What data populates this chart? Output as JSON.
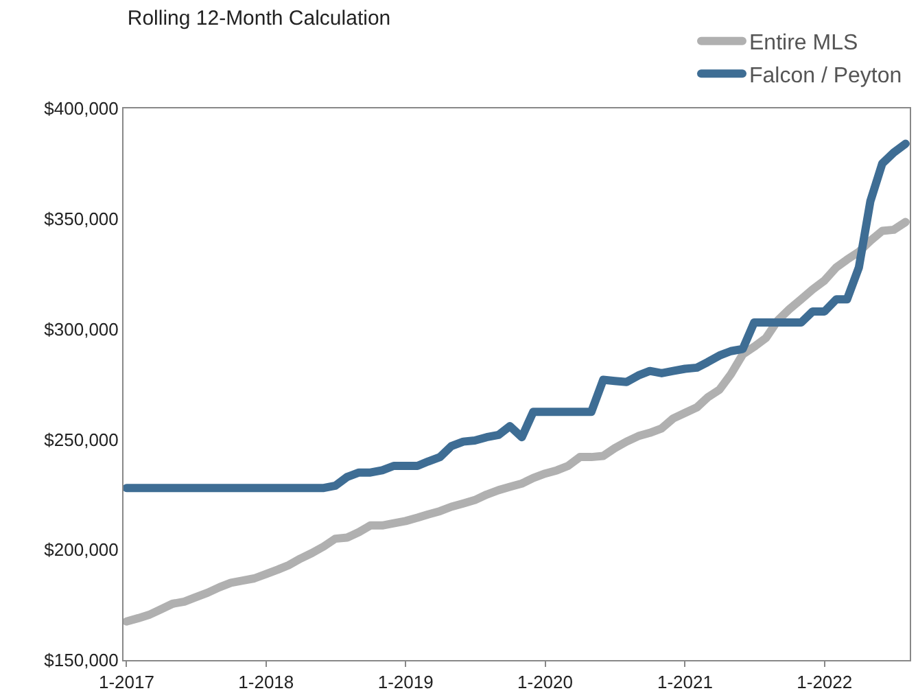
{
  "chart_data": {
    "type": "line",
    "title": "Rolling 12-Month Calculation",
    "x": [
      "2017-01",
      "2017-02",
      "2017-03",
      "2017-04",
      "2017-05",
      "2017-06",
      "2017-07",
      "2017-08",
      "2017-09",
      "2017-10",
      "2017-11",
      "2017-12",
      "2018-01",
      "2018-02",
      "2018-03",
      "2018-04",
      "2018-05",
      "2018-06",
      "2018-07",
      "2018-08",
      "2018-09",
      "2018-10",
      "2018-11",
      "2018-12",
      "2019-01",
      "2019-02",
      "2019-03",
      "2019-04",
      "2019-05",
      "2019-06",
      "2019-07",
      "2019-08",
      "2019-09",
      "2019-10",
      "2019-11",
      "2019-12",
      "2020-01",
      "2020-02",
      "2020-03",
      "2020-04",
      "2020-05",
      "2020-06",
      "2020-07",
      "2020-08",
      "2020-09",
      "2020-10",
      "2020-11",
      "2020-12",
      "2021-01",
      "2021-02",
      "2021-03",
      "2021-04",
      "2021-05",
      "2021-06",
      "2021-07",
      "2021-08",
      "2021-09",
      "2021-10",
      "2021-11",
      "2021-12",
      "2022-01",
      "2022-02",
      "2022-03",
      "2022-04",
      "2022-05",
      "2022-06",
      "2022-07",
      "2022-08"
    ],
    "series": [
      {
        "name": "Entire MLS",
        "color": "#b0b0b0",
        "values": [
          167500,
          169000,
          170500,
          173000,
          175500,
          176500,
          178500,
          180500,
          183000,
          185000,
          186000,
          187000,
          189000,
          191000,
          193000,
          196000,
          198500,
          201500,
          205000,
          205500,
          208000,
          211000,
          211000,
          212000,
          213000,
          214500,
          216000,
          217500,
          219500,
          221000,
          222500,
          225000,
          227000,
          228500,
          230000,
          232500,
          234500,
          236000,
          238000,
          242000,
          242000,
          242500,
          246000,
          249000,
          251500,
          253000,
          255000,
          259500,
          262000,
          264500,
          269000,
          272500,
          279500,
          288500,
          292000,
          296000,
          304000,
          309000,
          313500,
          318000,
          322000,
          328000,
          331500,
          335000,
          340000,
          344500,
          345000,
          348500
        ]
      },
      {
        "name": "Falcon / Peyton",
        "color": "#3e6d94",
        "values": [
          228000,
          228000,
          228000,
          228000,
          228000,
          228000,
          228000,
          228000,
          228000,
          228000,
          228000,
          228000,
          228000,
          228000,
          228000,
          228000,
          228000,
          228000,
          229000,
          233000,
          235000,
          235000,
          236000,
          238000,
          238000,
          238000,
          240000,
          242000,
          247000,
          249000,
          249500,
          251000,
          252000,
          256000,
          251000,
          262500,
          262500,
          262500,
          262500,
          262500,
          262500,
          277000,
          276500,
          276000,
          279000,
          281000,
          280000,
          281000,
          282000,
          282500,
          285000,
          288000,
          290000,
          291000,
          303000,
          303000,
          303000,
          303000,
          303000,
          308000,
          308000,
          313500,
          313500,
          328000,
          358000,
          375000,
          380000,
          384000
        ]
      }
    ],
    "xlim": [
      "2016-12-24",
      "2022-08-12"
    ],
    "xticks": [
      {
        "value": "2017-01",
        "label": "1-2017"
      },
      {
        "value": "2018-01",
        "label": "1-2018"
      },
      {
        "value": "2019-01",
        "label": "1-2019"
      },
      {
        "value": "2020-01",
        "label": "1-2020"
      },
      {
        "value": "2021-01",
        "label": "1-2021"
      },
      {
        "value": "2022-01",
        "label": "1-2022"
      }
    ],
    "ylim": [
      150000,
      400000
    ],
    "yticks": [
      {
        "value": 150000,
        "label": "$150,000"
      },
      {
        "value": 200000,
        "label": "$200,000"
      },
      {
        "value": 250000,
        "label": "$250,000"
      },
      {
        "value": 300000,
        "label": "$300,000"
      },
      {
        "value": 350000,
        "label": "$350,000"
      },
      {
        "value": 400000,
        "label": "$400,000"
      }
    ],
    "grid": false,
    "legend": "top right",
    "marker": "none",
    "line_style": "solid"
  }
}
